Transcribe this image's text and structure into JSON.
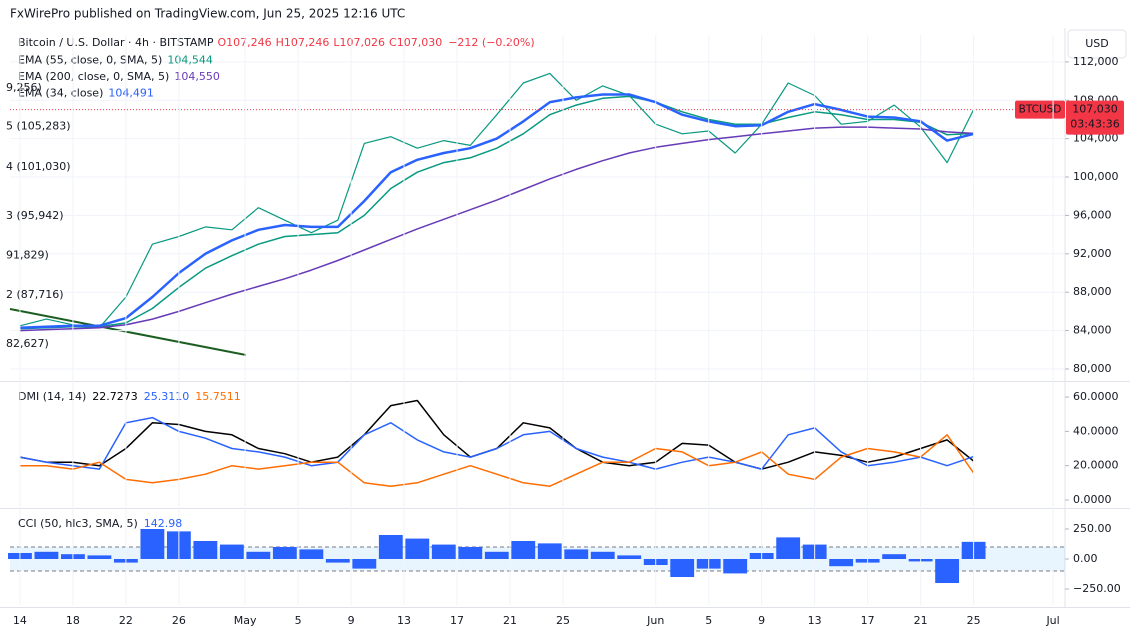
{
  "header": {
    "publisher": "FxWirePro published on TradingView.com, Jun 25, 2025 12:16 UTC",
    "currency": "USD"
  },
  "chart_data": [
    {
      "type": "line",
      "title": "Bitcoin / U.S. Dollar · 4h · BITSTAMP",
      "ohlc_labels": [
        "O107,246",
        "H107,246",
        "L107,026",
        "C107,030"
      ],
      "change": "−212 (−0.20%)",
      "x": [
        0,
        2,
        4,
        6,
        8,
        10,
        12,
        14,
        16,
        18,
        20,
        22,
        24,
        26,
        28,
        30,
        32,
        34,
        36,
        38,
        40,
        42,
        44,
        46,
        48,
        50,
        52,
        54,
        56,
        58,
        60,
        62,
        64,
        66,
        68,
        70,
        72
      ],
      "xlim": [
        -0.75,
        78.9
      ],
      "ylim": [
        78850,
        114800
      ],
      "yticks": [
        {
          "value": 80000,
          "label": "80,000"
        },
        {
          "value": 84000,
          "label": "84,000"
        },
        {
          "value": 88000,
          "label": "88,000"
        },
        {
          "value": 92000,
          "label": "92,000"
        },
        {
          "value": 96000,
          "label": "96,000"
        },
        {
          "value": 100000,
          "label": "100,000"
        },
        {
          "value": 104000,
          "label": "104,000"
        },
        {
          "value": 108000,
          "label": "108,000"
        },
        {
          "value": 112000,
          "label": "112,000"
        }
      ],
      "grid": true,
      "price_label": {
        "value": "107,030",
        "countdown": "03:43:36"
      },
      "series": [
        {
          "name": "BTCUSD",
          "color": "#089981",
          "values": [
            84500,
            85200,
            84600,
            84300,
            87500,
            93000,
            93800,
            94800,
            94500,
            96800,
            95500,
            94200,
            95500,
            103500,
            104200,
            103000,
            103800,
            103300,
            106500,
            109800,
            110800,
            108000,
            109500,
            108500,
            105500,
            104500,
            104800,
            102500,
            105500,
            109800,
            108500,
            105500,
            105800,
            107500,
            105200,
            101500,
            107030
          ]
        },
        {
          "name": "EMA (55, close, 0, SMA, 5)",
          "legend_value": "104,544",
          "color": "#089981",
          "values": [
            84200,
            84300,
            84400,
            84400,
            84800,
            86300,
            88500,
            90500,
            91800,
            93000,
            93800,
            94000,
            94200,
            96000,
            98800,
            100500,
            101500,
            102000,
            103000,
            104500,
            106500,
            107500,
            108200,
            108400,
            107800,
            106800,
            106000,
            105500,
            105500,
            106200,
            106800,
            106500,
            106000,
            106000,
            105700,
            104400,
            104544
          ]
        },
        {
          "name": "EMA (200, close, 0, SMA, 5)",
          "legend_value": "104,550",
          "color": "#673ab7",
          "values": [
            84000,
            84100,
            84200,
            84300,
            84600,
            85200,
            86000,
            86900,
            87800,
            88600,
            89400,
            90300,
            91300,
            92400,
            93500,
            94600,
            95600,
            96600,
            97600,
            98700,
            99800,
            100800,
            101700,
            102500,
            103100,
            103500,
            103900,
            104200,
            104500,
            104800,
            105100,
            105200,
            105200,
            105100,
            105000,
            104700,
            104550
          ]
        },
        {
          "name": "EMA (34, close)",
          "legend_value": "104,491",
          "color": "#2962ff",
          "values": [
            84300,
            84400,
            84500,
            84500,
            85300,
            87500,
            90000,
            92000,
            93400,
            94500,
            95000,
            94800,
            94800,
            97500,
            100500,
            101800,
            102500,
            103000,
            104000,
            105800,
            107800,
            108300,
            108600,
            108600,
            107800,
            106500,
            105800,
            105300,
            105400,
            106800,
            107600,
            107000,
            106300,
            106200,
            105800,
            103800,
            104491
          ]
        }
      ],
      "annotations": [
        {
          "label": "9,256)",
          "value": 109256
        },
        {
          "label": "5 (105,283)",
          "value": 105283
        },
        {
          "label": "4 (101,030)",
          "value": 101030
        },
        {
          "label": "3 (95,942)",
          "value": 95942
        },
        {
          "label": "91,829)",
          "value": 91829
        },
        {
          "label": "2 (87,716)",
          "value": 87716
        },
        {
          "label": "82,627)",
          "value": 82627
        }
      ]
    },
    {
      "type": "line",
      "title": "DMI (14, 14)",
      "x": [
        0,
        2,
        4,
        6,
        8,
        10,
        12,
        14,
        16,
        18,
        20,
        22,
        24,
        26,
        28,
        30,
        32,
        34,
        36,
        38,
        40,
        42,
        44,
        46,
        48,
        50,
        52,
        54,
        56,
        58,
        60,
        62,
        64,
        66,
        68,
        70,
        72
      ],
      "xlim": [
        -0.75,
        78.9
      ],
      "ylim": [
        -4.1,
        68.2
      ],
      "yticks": [
        {
          "value": 0,
          "label": "0.0000"
        },
        {
          "value": 20,
          "label": "20.0000"
        },
        {
          "value": 40,
          "label": "40.0000"
        },
        {
          "value": 60,
          "label": "60.0000"
        }
      ],
      "series": [
        {
          "legend_value": "22.7273",
          "color": "#000000",
          "values": [
            25,
            22,
            22,
            20,
            30,
            45,
            44,
            40,
            38,
            30,
            27,
            22,
            25,
            38,
            55,
            58,
            38,
            25,
            30,
            45,
            42,
            30,
            22,
            20,
            22,
            33,
            32,
            22,
            18,
            22,
            28,
            26,
            22,
            25,
            30,
            35,
            22.7273
          ]
        },
        {
          "legend_value": "25.3110",
          "color": "#2962ff",
          "values": [
            25,
            22,
            20,
            18,
            45,
            48,
            40,
            36,
            30,
            28,
            25,
            20,
            22,
            38,
            45,
            35,
            28,
            25,
            30,
            38,
            40,
            30,
            25,
            22,
            18,
            22,
            25,
            22,
            18,
            38,
            42,
            28,
            20,
            22,
            25,
            20,
            25.311
          ]
        },
        {
          "legend_value": "15.7511",
          "color": "#ff6d00",
          "values": [
            20,
            20,
            18,
            22,
            12,
            10,
            12,
            15,
            20,
            18,
            20,
            22,
            22,
            10,
            8,
            10,
            15,
            20,
            15,
            10,
            8,
            15,
            22,
            22,
            30,
            28,
            20,
            22,
            28,
            15,
            12,
            25,
            30,
            28,
            25,
            38,
            15.7511
          ]
        }
      ]
    },
    {
      "type": "histogram",
      "title": "CCI (50, hlc3, SMA, 5)",
      "legend_value": "142.98",
      "color": "#2962ff",
      "band": [
        -100,
        100
      ],
      "x": [
        0,
        2,
        4,
        6,
        8,
        10,
        12,
        14,
        16,
        18,
        20,
        22,
        24,
        26,
        28,
        30,
        32,
        34,
        36,
        38,
        40,
        42,
        44,
        46,
        48,
        50,
        52,
        54,
        56,
        58,
        60,
        62,
        64,
        66,
        68,
        70,
        72
      ],
      "values": [
        50,
        60,
        40,
        30,
        -30,
        250,
        230,
        150,
        120,
        60,
        100,
        80,
        -30,
        -80,
        200,
        170,
        120,
        100,
        60,
        150,
        130,
        80,
        60,
        30,
        -50,
        -150,
        -80,
        -120,
        50,
        180,
        120,
        -60,
        -30,
        40,
        -20,
        -200,
        142.98
      ],
      "xlim": [
        -0.75,
        78.9
      ],
      "ylim": [
        -383,
        408
      ],
      "yticks": [
        {
          "value": -250,
          "label": "−250.00"
        },
        {
          "value": 0,
          "label": "0.00"
        },
        {
          "value": 250,
          "label": "250.00"
        }
      ],
      "xticks": [
        {
          "value": 0,
          "label": "14"
        },
        {
          "value": 4,
          "label": "18"
        },
        {
          "value": 8,
          "label": "22"
        },
        {
          "value": 12,
          "label": "26"
        },
        {
          "value": 17,
          "label": "May"
        },
        {
          "value": 21,
          "label": "5"
        },
        {
          "value": 25,
          "label": "9"
        },
        {
          "value": 29,
          "label": "13"
        },
        {
          "value": 33,
          "label": "17"
        },
        {
          "value": 37,
          "label": "21"
        },
        {
          "value": 41,
          "label": "25"
        },
        {
          "value": 48,
          "label": "Jun"
        },
        {
          "value": 52,
          "label": "5"
        },
        {
          "value": 56,
          "label": "9"
        },
        {
          "value": 60,
          "label": "13"
        },
        {
          "value": 64,
          "label": "17"
        },
        {
          "value": 68,
          "label": "21"
        },
        {
          "value": 72,
          "label": "25"
        },
        {
          "value": 78,
          "label": "Jul"
        }
      ]
    }
  ]
}
